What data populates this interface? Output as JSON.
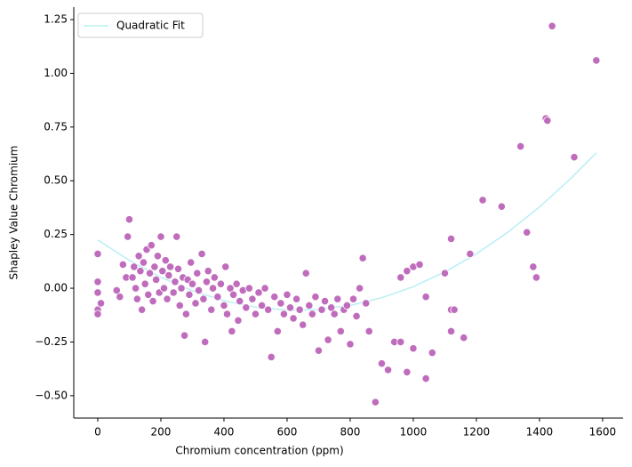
{
  "chart_data": {
    "type": "scatter",
    "xlabel": "Chromium concentration (ppm)",
    "ylabel": "Shapley Value Chromium",
    "xlim": [
      -76,
      1665
    ],
    "ylim": [
      -0.604,
      1.308
    ],
    "xticks": [
      0,
      200,
      400,
      600,
      800,
      1000,
      1200,
      1400,
      1600
    ],
    "yticks": [
      {
        "value": -0.5,
        "label": "−0.50"
      },
      {
        "value": -0.25,
        "label": "−0.25"
      },
      {
        "value": 0,
        "label": "0.00"
      },
      {
        "value": 0.25,
        "label": "0.25"
      },
      {
        "value": 0.5,
        "label": "0.50"
      },
      {
        "value": 0.75,
        "label": "0.75"
      },
      {
        "value": 1,
        "label": "1.00"
      },
      {
        "value": 1.25,
        "label": "1.25"
      }
    ],
    "color": "#c06cbd",
    "x": [
      0,
      0,
      0,
      0,
      0,
      10,
      60,
      70,
      80,
      90,
      95,
      100,
      110,
      115,
      120,
      125,
      130,
      135,
      140,
      145,
      150,
      155,
      160,
      165,
      170,
      175,
      180,
      185,
      190,
      195,
      200,
      205,
      210,
      215,
      220,
      225,
      230,
      240,
      245,
      250,
      255,
      260,
      265,
      270,
      275,
      280,
      285,
      290,
      295,
      300,
      310,
      315,
      320,
      330,
      335,
      340,
      345,
      350,
      360,
      365,
      370,
      380,
      390,
      400,
      405,
      410,
      420,
      425,
      430,
      440,
      445,
      450,
      460,
      470,
      480,
      490,
      500,
      510,
      520,
      530,
      540,
      550,
      560,
      570,
      580,
      590,
      600,
      610,
      620,
      630,
      640,
      650,
      660,
      670,
      680,
      690,
      700,
      710,
      720,
      730,
      740,
      750,
      760,
      770,
      780,
      790,
      800,
      810,
      820,
      830,
      840,
      850,
      860,
      880,
      900,
      920,
      940,
      960,
      960,
      980,
      980,
      1000,
      1000,
      1020,
      1040,
      1040,
      1060,
      1100,
      1120,
      1120,
      1130,
      1120,
      1160,
      1180,
      1220,
      1280,
      1340,
      1360,
      1380,
      1390,
      1420,
      1425,
      1440,
      1510,
      1580
    ],
    "values": [
      0.16,
      0.03,
      -0.02,
      -0.1,
      -0.12,
      -0.07,
      -0.01,
      -0.04,
      0.11,
      0.05,
      0.24,
      0.32,
      0.05,
      0.1,
      0.0,
      -0.05,
      0.15,
      0.08,
      -0.1,
      0.12,
      0.02,
      0.18,
      -0.03,
      0.07,
      0.2,
      -0.06,
      0.1,
      0.04,
      0.15,
      -0.02,
      0.24,
      0.08,
      0.0,
      0.13,
      -0.05,
      0.06,
      0.1,
      -0.02,
      0.03,
      0.24,
      0.09,
      -0.08,
      0.0,
      0.05,
      -0.22,
      -0.12,
      0.04,
      -0.03,
      0.12,
      0.02,
      -0.07,
      0.07,
      -0.01,
      0.16,
      -0.05,
      -0.25,
      0.03,
      0.08,
      -0.1,
      0.0,
      0.05,
      -0.04,
      0.02,
      -0.08,
      0.1,
      -0.12,
      0.0,
      -0.2,
      -0.03,
      0.02,
      -0.15,
      -0.06,
      -0.01,
      -0.09,
      0.0,
      -0.05,
      -0.12,
      -0.02,
      -0.08,
      0.0,
      -0.1,
      -0.32,
      -0.04,
      -0.2,
      -0.07,
      -0.12,
      -0.03,
      -0.09,
      -0.14,
      -0.05,
      -0.1,
      -0.17,
      0.07,
      -0.08,
      -0.12,
      -0.04,
      -0.29,
      -0.1,
      -0.06,
      -0.24,
      -0.09,
      -0.12,
      -0.05,
      -0.2,
      -0.1,
      -0.08,
      -0.26,
      -0.05,
      -0.13,
      0.0,
      0.14,
      -0.07,
      -0.2,
      -0.53,
      -0.35,
      -0.38,
      -0.25,
      -0.25,
      0.05,
      -0.39,
      0.08,
      -0.28,
      0.1,
      0.11,
      -0.42,
      -0.04,
      -0.3,
      0.07,
      0.23,
      -0.1,
      -0.1,
      -0.2,
      -0.23,
      0.16,
      0.41,
      0.38,
      0.66,
      0.26,
      0.1,
      0.05,
      0.79,
      0.78,
      1.22,
      0.61,
      1.06
    ],
    "fit": {
      "name": "Quadratic Fit",
      "color": "#b9eff4",
      "x": [
        0,
        100,
        200,
        300,
        400,
        500,
        600,
        700,
        800,
        900,
        1000,
        1100,
        1200,
        1300,
        1400,
        1500,
        1580
      ],
      "values": [
        0.225,
        0.13,
        0.051,
        -0.012,
        -0.058,
        -0.088,
        -0.102,
        -0.099,
        -0.08,
        -0.044,
        0.007,
        0.076,
        0.16,
        0.261,
        0.378,
        0.512,
        0.63
      ]
    }
  }
}
